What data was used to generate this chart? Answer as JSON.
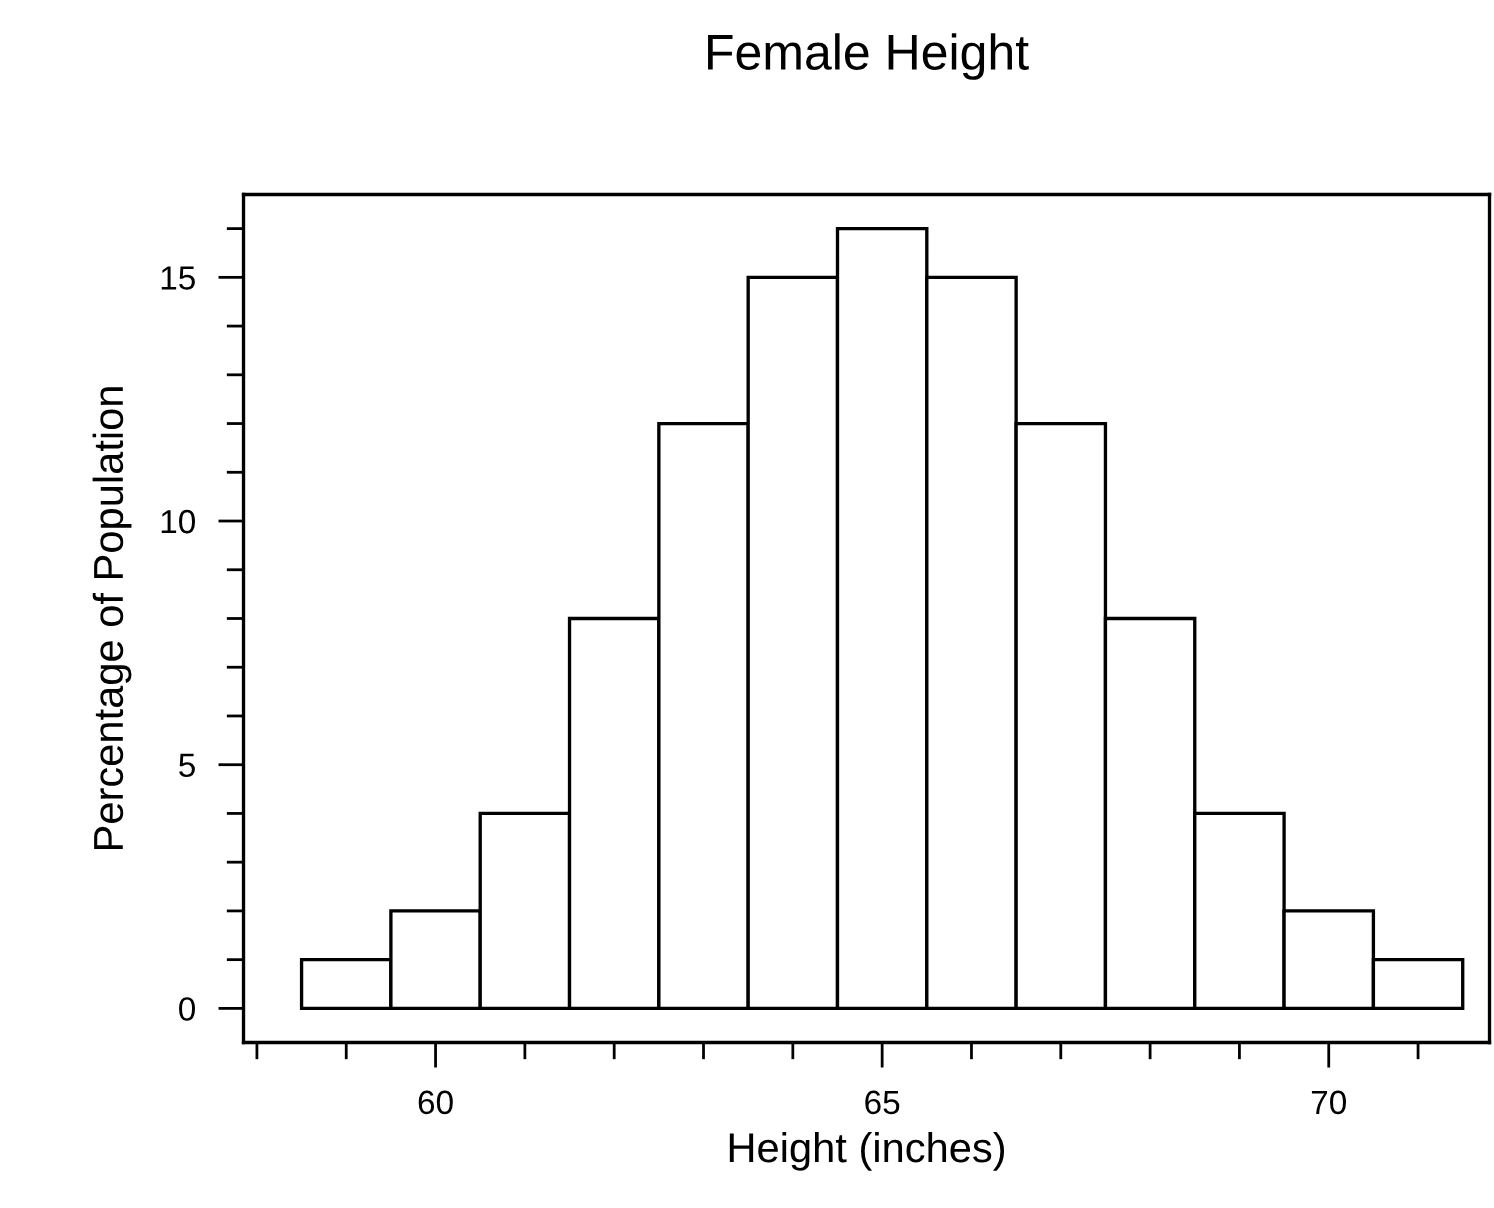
{
  "chart_data": {
    "type": "histogram",
    "title": "Female Height",
    "xlabel": "Height (inches)",
    "ylabel": "Percentage of Population",
    "bins": [
      58.5,
      59.5,
      60.5,
      61.5,
      62.5,
      63.5,
      64.5,
      65.5,
      66.5,
      67.5,
      68.5,
      69.5,
      70.5,
      71.5
    ],
    "values": [
      1,
      2,
      4,
      8,
      12,
      15,
      16,
      15,
      12,
      8,
      4,
      2,
      1
    ],
    "color": "#ffffff",
    "xlim": [
      57.85,
      71.8
    ],
    "ylim": [
      -0.7,
      16.7
    ],
    "xticks": [
      60,
      65,
      70
    ],
    "yticks": [
      0,
      5,
      10,
      15
    ],
    "grid": false
  }
}
